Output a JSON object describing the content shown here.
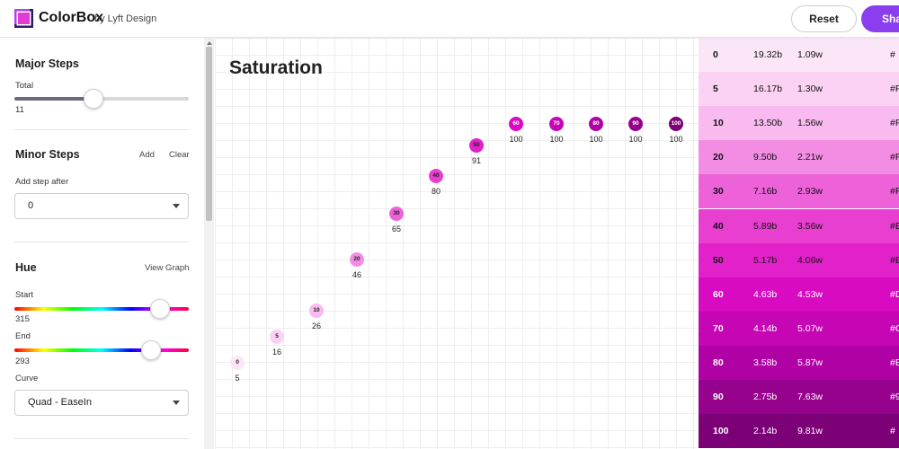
{
  "header": {
    "brand": "ColorBox",
    "byline": "by Lyft Design",
    "reset_label": "Reset",
    "share_label": "Sha"
  },
  "sidebar": {
    "major_steps": {
      "title": "Major Steps",
      "total_label": "Total",
      "total_value": "11",
      "slider_fraction": 0.455
    },
    "minor_steps": {
      "title": "Minor Steps",
      "add_label": "Add",
      "clear_label": "Clear",
      "add_after_label": "Add step after",
      "add_after_value": "0"
    },
    "hue": {
      "title": "Hue",
      "view_graph_label": "View Graph",
      "start_label": "Start",
      "start_value": "315",
      "end_label": "End",
      "end_value": "293",
      "curve_label": "Curve",
      "curve_value": "Quad - EaseIn"
    }
  },
  "graph": {
    "title": "Saturation",
    "points": [
      {
        "step": "0",
        "value": "5"
      },
      {
        "step": "5",
        "value": "16"
      },
      {
        "step": "10",
        "value": "26"
      },
      {
        "step": "20",
        "value": "46"
      },
      {
        "step": "30",
        "value": "65"
      },
      {
        "step": "40",
        "value": "80"
      },
      {
        "step": "50",
        "value": "91"
      },
      {
        "step": "60",
        "value": "100"
      },
      {
        "step": "70",
        "value": "100"
      },
      {
        "step": "80",
        "value": "100"
      },
      {
        "step": "90",
        "value": "100"
      },
      {
        "step": "100",
        "value": "100"
      }
    ]
  },
  "table": {
    "rows": [
      {
        "step": "0",
        "b": "19.32b",
        "w": "1.09w",
        "hex": "#",
        "bg": "#fbe6f8",
        "fg": "#111111"
      },
      {
        "step": "5",
        "b": "16.17b",
        "w": "1.30w",
        "hex": "#F",
        "bg": "#fbd2f4",
        "fg": "#111111"
      },
      {
        "step": "10",
        "b": "13.50b",
        "w": "1.56w",
        "hex": "#F",
        "bg": "#f8baef",
        "fg": "#111111"
      },
      {
        "step": "20",
        "b": "9.50b",
        "w": "2.21w",
        "hex": "#F",
        "bg": "#f38de4",
        "fg": "#111111"
      },
      {
        "step": "30",
        "b": "7.16b",
        "w": "2.93w",
        "hex": "#F",
        "bg": "#ed62d8",
        "fg": "#111111"
      },
      {
        "step": "40",
        "b": "5.89b",
        "w": "3.56w",
        "hex": "#E",
        "bg": "#e83fd0",
        "fg": "#111111"
      },
      {
        "step": "50",
        "b": "5.17b",
        "w": "4.06w",
        "hex": "#E",
        "bg": "#e221ca",
        "fg": "#111111"
      },
      {
        "step": "60",
        "b": "4.63b",
        "w": "4.53w",
        "hex": "#D",
        "bg": "#d80ac2",
        "fg": "#ffffff"
      },
      {
        "step": "70",
        "b": "4.14b",
        "w": "5.07w",
        "hex": "#C",
        "bg": "#c605b5",
        "fg": "#ffffff"
      },
      {
        "step": "80",
        "b": "3.58b",
        "w": "5.87w",
        "hex": "#B",
        "bg": "#b002a4",
        "fg": "#ffffff"
      },
      {
        "step": "90",
        "b": "2.75b",
        "w": "7.63w",
        "hex": "#9",
        "bg": "#96018d",
        "fg": "#ffffff"
      },
      {
        "step": "100",
        "b": "2.14b",
        "w": "9.81w",
        "hex": "#",
        "bg": "#7c0076",
        "fg": "#ffffff"
      }
    ]
  },
  "colors": {
    "accent": "#8a3ef0",
    "hue_start_gradient": [
      "#ff0000",
      "#ffff00",
      "#00ff00",
      "#00ffff",
      "#0000ff",
      "#ff00ff",
      "#ff0000"
    ],
    "point_colors": [
      "#fbe6f8",
      "#fbd2f4",
      "#f8baef",
      "#f38de4",
      "#ed62d8",
      "#e83fd0",
      "#e221ca",
      "#d80ac2",
      "#c605b5",
      "#b002a4",
      "#96018d",
      "#7c0076"
    ]
  }
}
